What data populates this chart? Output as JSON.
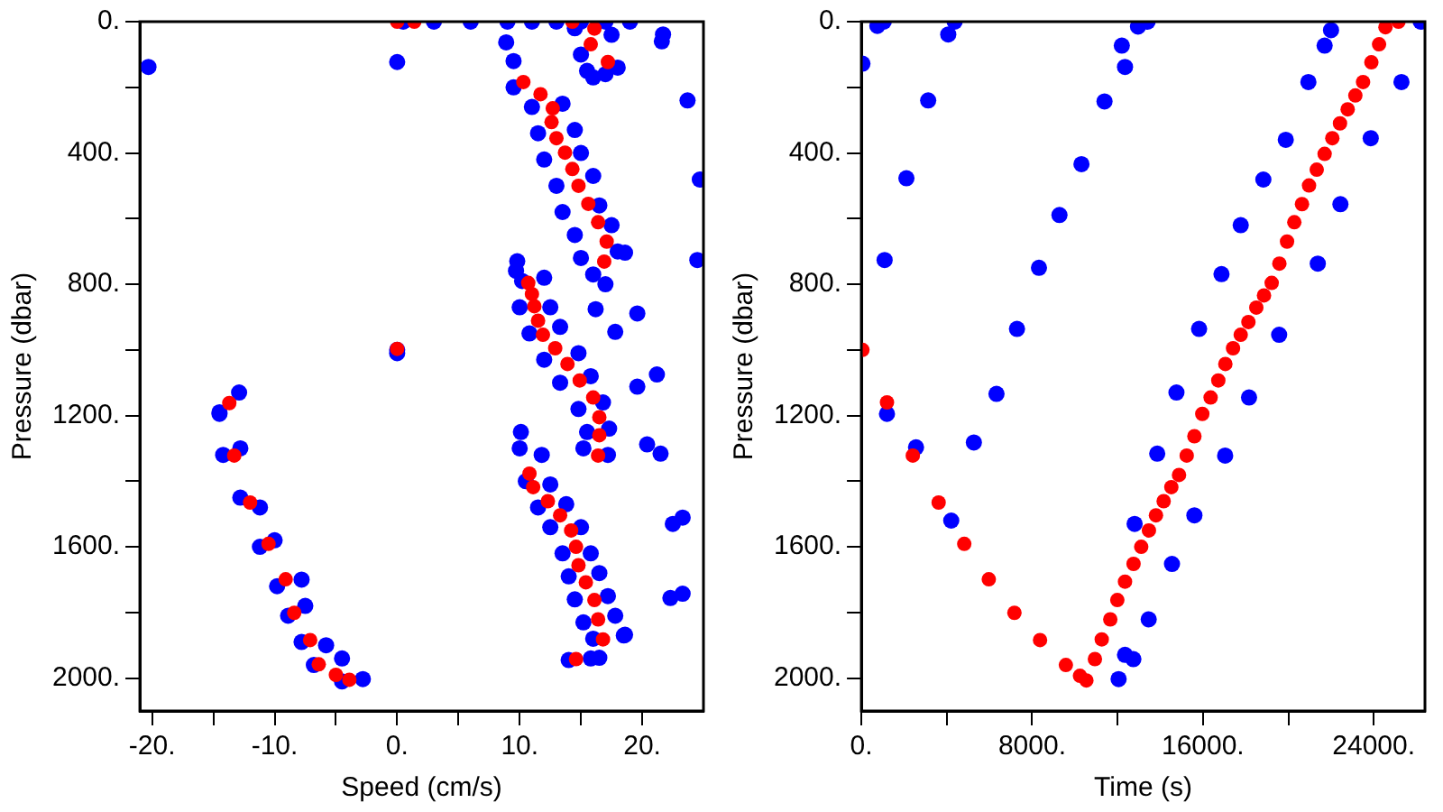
{
  "chart_data": [
    {
      "type": "scatter",
      "xlabel": "Speed (cm/s)",
      "ylabel": "Pressure (dbar)",
      "marker": "circle",
      "xlim": [
        -21,
        25
      ],
      "xticks": [
        {
          "value": -20,
          "label": "-20."
        },
        {
          "value": -15,
          "label": null
        },
        {
          "value": -10,
          "label": "-10."
        },
        {
          "value": -5,
          "label": null
        },
        {
          "value": 0,
          "label": "0."
        },
        {
          "value": 5,
          "label": null
        },
        {
          "value": 10,
          "label": "10."
        },
        {
          "value": 15,
          "label": null
        },
        {
          "value": 20,
          "label": "20."
        }
      ],
      "ylim": [
        2100,
        0
      ],
      "yticks": [
        {
          "value": 0,
          "label": "0."
        },
        {
          "value": 200,
          "label": null
        },
        {
          "value": 400,
          "label": "400."
        },
        {
          "value": 600,
          "label": null
        },
        {
          "value": 800,
          "label": "800."
        },
        {
          "value": 1000,
          "label": null
        },
        {
          "value": 1200,
          "label": "1200."
        },
        {
          "value": 1400,
          "label": null
        },
        {
          "value": 1600,
          "label": "1600."
        },
        {
          "value": 1800,
          "label": null
        },
        {
          "value": 2000,
          "label": "2000."
        }
      ],
      "series": [
        {
          "color": "#0000ff",
          "x": [
            14.5,
            17.5,
            15,
            18,
            15.5,
            17,
            16,
            0.5,
            3,
            6,
            9,
            11,
            13,
            15,
            17,
            19,
            9.5,
            9.5,
            11,
            13.5,
            11.5,
            14.5,
            12,
            15,
            13,
            16,
            13.5,
            16.5,
            14.5,
            17.5,
            15,
            18,
            16,
            17,
            9.8,
            10.2,
            12,
            10,
            12.5,
            10.8,
            13.3,
            12,
            14.8,
            13.3,
            15.8,
            14.8,
            16.8,
            15.5,
            17.3,
            15.2,
            17.2,
            10.1,
            10,
            11.8,
            10.5,
            12.5,
            11.5,
            13.8,
            12.5,
            15,
            13.5,
            15.8,
            14,
            16.5,
            14.5,
            17.2,
            15.2,
            17.8,
            16,
            18.5,
            14,
            15.8,
            -14.5,
            -12.9,
            -14.2,
            -12.8,
            -12.8,
            -11.2,
            -11.2,
            -10,
            -9.8,
            -7.8,
            -8.9,
            -7.5,
            -7.8,
            -5.8,
            -6.8,
            -4.5,
            -2.8,
            -4.5,
            -20.3,
            0,
            0,
            0,
            21.7,
            21.6,
            23.7,
            24.7,
            24.5,
            8.9,
            16.2,
            19.6,
            17.8,
            19.6,
            21.2,
            9.7,
            18.6,
            20.4,
            21.5,
            23.3,
            22.5,
            23.3,
            22.3,
            18.6,
            16.5,
            -14.5
          ],
          "values": [
            20,
            40,
            100,
            140,
            150,
            160,
            170,
            0,
            0,
            0,
            0,
            0,
            0,
            0,
            0,
            0,
            120,
            200,
            260,
            250,
            340,
            330,
            420,
            400,
            500,
            470,
            580,
            560,
            650,
            620,
            720,
            700,
            770,
            800,
            730,
            790,
            780,
            870,
            870,
            950,
            930,
            1030,
            1010,
            1100,
            1080,
            1180,
            1160,
            1250,
            1240,
            1300,
            1320,
            1250,
            1300,
            1320,
            1400,
            1410,
            1480,
            1470,
            1540,
            1540,
            1620,
            1620,
            1690,
            1680,
            1760,
            1750,
            1830,
            1810,
            1880,
            1870,
            1945,
            1940,
            1190,
            1130,
            1320,
            1300,
            1450,
            1480,
            1600,
            1580,
            1720,
            1700,
            1810,
            1780,
            1890,
            1900,
            1960,
            1940,
            2003,
            2010,
            138,
            123,
            1000,
            1010,
            39,
            60,
            240,
            481,
            726,
            63,
            876,
            889,
            945,
            1112,
            1075,
            759,
            704,
            1288,
            1316,
            1511,
            1530,
            1743,
            1756,
            1868,
            1938,
            1195
          ]
        },
        {
          "color": "#ff0000",
          "x": [
            0,
            1.4,
            14.3,
            16.1,
            15.8,
            17.2,
            10.3,
            11.7,
            12.7,
            12.6,
            13,
            13.7,
            14.3,
            14.8,
            15.6,
            16.4,
            17.1,
            16.9,
            10.7,
            11,
            11.2,
            11.5,
            11.9,
            12.9,
            13.9,
            14.9,
            16,
            0,
            -13.7,
            16.5,
            16.5,
            16.4,
            -13.3,
            -12,
            -10.5,
            -9.1,
            -8.4,
            -7.1,
            -6.4,
            -5,
            -3.9,
            10.8,
            11.1,
            12.3,
            13.3,
            14.2,
            14.6,
            14.8,
            15.4,
            16.1,
            16.4,
            16.8,
            14.6
          ],
          "values": [
            0,
            0,
            0,
            21,
            69,
            123,
            184,
            221,
            264,
            306,
            355,
            399,
            449,
            500,
            555,
            611,
            670,
            731,
            796,
            830,
            867,
            911,
            954,
            995,
            1043,
            1093,
            1145,
            997,
            1162,
            1205,
            1260,
            1322,
            1322,
            1465,
            1591,
            1699,
            1801,
            1884,
            1958,
            1990,
            2005,
            1377,
            1418,
            1461,
            1504,
            1550,
            1600,
            1656,
            1708,
            1762,
            1821,
            1882,
            1942
          ]
        }
      ]
    },
    {
      "type": "scatter",
      "xlabel": "Time (s)",
      "ylabel": "Pressure (dbar)",
      "marker": "circle",
      "xlim": [
        0,
        26400
      ],
      "xticks": [
        {
          "value": 0,
          "label": "0."
        },
        {
          "value": 4000,
          "label": null
        },
        {
          "value": 8000,
          "label": "8000."
        },
        {
          "value": 12000,
          "label": null
        },
        {
          "value": 16000,
          "label": "16000."
        },
        {
          "value": 20000,
          "label": null
        },
        {
          "value": 24000,
          "label": "24000."
        }
      ],
      "ylim": [
        2100,
        0
      ],
      "yticks": [
        {
          "value": 0,
          "label": "0."
        },
        {
          "value": 200,
          "label": null
        },
        {
          "value": 400,
          "label": "400."
        },
        {
          "value": 600,
          "label": null
        },
        {
          "value": 800,
          "label": "800."
        },
        {
          "value": 1000,
          "label": null
        },
        {
          "value": 1200,
          "label": "1200."
        },
        {
          "value": 1400,
          "label": null
        },
        {
          "value": 1600,
          "label": "1600."
        },
        {
          "value": 1800,
          "label": null
        },
        {
          "value": 2000,
          "label": "2000."
        }
      ],
      "series": [
        {
          "color": "#0000ff",
          "x": [
            26200,
            25300,
            23860,
            22440,
            21380,
            19570,
            18160,
            17040,
            15600,
            14550,
            13460,
            12740,
            12050,
            12350,
            750,
            1050,
            50,
            3130,
            2110,
            1090,
            4070,
            4370,
            12200,
            12350,
            12960,
            13410,
            11390,
            10310,
            9280,
            8320,
            7290,
            6330,
            5270,
            1200,
            2560,
            4210,
            14760,
            15820,
            16870,
            17770,
            18830,
            19880,
            20940,
            21700,
            22000,
            13860,
            12800
          ],
          "values": [
            0,
            184,
            355,
            556,
            737,
            954,
            1145,
            1322,
            1504,
            1652,
            1821,
            1942,
            2003,
            1929,
            13,
            0,
            128,
            240,
            477,
            726,
            39,
            0,
            73,
            138,
            15,
            0,
            243,
            434,
            589,
            750,
            936,
            1134,
            1282,
            1195,
            1297,
            1520,
            1130,
            936,
            769,
            620,
            481,
            360,
            184,
            73,
            26,
            1316,
            1530
          ]
        },
        {
          "color": "#ff0000",
          "x": [
            24550,
            25160,
            24250,
            23890,
            23500,
            23140,
            22780,
            22420,
            22060,
            21700,
            21330,
            20970,
            20640,
            20280,
            19940,
            19580,
            19220,
            18860,
            18500,
            18130,
            17770,
            17410,
            17050,
            16720,
            16360,
            15970,
            15600,
            15240,
            14880,
            14520,
            14160,
            13800,
            13470,
            13110,
            12750,
            12350,
            11990,
            11660,
            11260,
            10940,
            10540,
            10240,
            9580,
            8370,
            7170,
            5970,
            4820,
            3620,
            2410,
            1200,
            50
          ],
          "values": [
            17,
            0,
            69,
            124,
            184,
            225,
            267,
            310,
            355,
            403,
            451,
            499,
            556,
            611,
            670,
            737,
            796,
            834,
            871,
            915,
            954,
            995,
            1043,
            1093,
            1145,
            1195,
            1263,
            1322,
            1381,
            1418,
            1461,
            1504,
            1550,
            1600,
            1652,
            1706,
            1762,
            1821,
            1882,
            1942,
            2007,
            1993,
            1960,
            1884,
            1801,
            1699,
            1591,
            1465,
            1322,
            1160,
            1000
          ]
        }
      ]
    }
  ]
}
